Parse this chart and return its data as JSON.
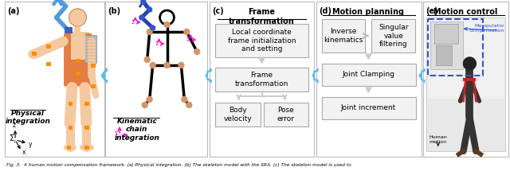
{
  "panel_a_label": "Physical\nintegration",
  "panel_b_label": "Kinematic\nchain\nintegration",
  "section_c_title": "Frame\ntransformation",
  "section_d_title": "Motion planning",
  "section_e_title": "Motion control",
  "section_c_boxes": [
    "Local coordinate\nframe initialization\nand setting",
    "Frame\ntransformation",
    "Body\nvelocity",
    "Pose\nerror"
  ],
  "section_d_boxes": [
    "Inverse\nkinematics",
    "Singular\nvalue\nfiltering",
    "Joint Clamping",
    "Joint increment"
  ],
  "arrow_color": "#55BBEE",
  "box_bg": "#F2F2F2",
  "box_border": "#AAAAAA",
  "flow_arrow_color": "#CCCCCC",
  "panel_border": "#BBBBBB",
  "blue_dashed": "#4466DD",
  "manipulator_text_color": "#4466DD",
  "fig_bg": "#FFFFFF",
  "caption": "Fig. 3.  A human motion compensation framework. (a) Physical integration. (b) The skeleton model with the SRA. (c) The skeleton model is used to"
}
